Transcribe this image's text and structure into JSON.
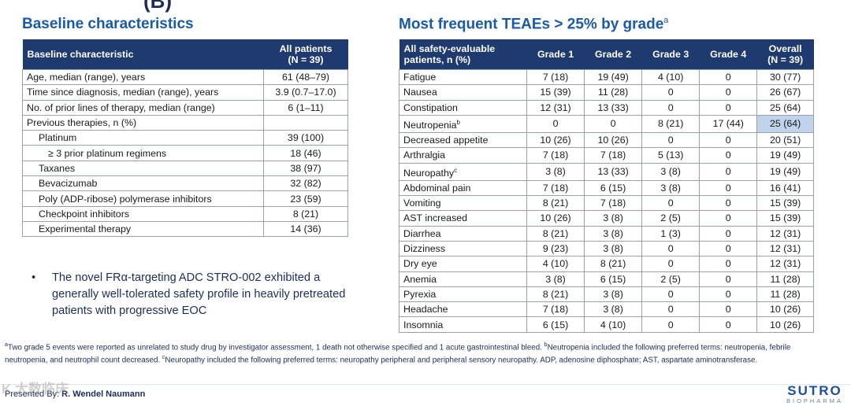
{
  "baseline": {
    "title": "Baseline characteristics",
    "header_col1": "Baseline characteristic",
    "header_col2_line1": "All patients",
    "header_col2_line2": "(N = 39)",
    "rows": [
      {
        "label": "Age, median (range), years",
        "value": "61 (48–79)"
      },
      {
        "label": "Time since diagnosis, median (range), years",
        "value": "3.9 (0.7–17.0)"
      },
      {
        "label": "No. of prior lines of therapy, median (range)",
        "value": "6 (1–11)"
      },
      {
        "label": "Previous therapies, n (%)",
        "value": ""
      },
      {
        "label": "Platinum",
        "value": "39 (100)"
      },
      {
        "label": "≥ 3 prior platinum regimens",
        "value": "18 (46)"
      },
      {
        "label": "Taxanes",
        "value": "38 (97)"
      },
      {
        "label": "Bevacizumab",
        "value": "32 (82)"
      },
      {
        "label": "Poly (ADP-ribose) polymerase inhibitors",
        "value": "23 (59)"
      },
      {
        "label": "Checkpoint inhibitors",
        "value": "8 (21)"
      },
      {
        "label": "Experimental therapy",
        "value": "14 (36)"
      }
    ]
  },
  "teae": {
    "title": "Most frequent TEAEs > 25% by grade",
    "title_sup": "a",
    "header_col1_line1": "All safety-evaluable",
    "header_col1_line2": "patients, n (%)",
    "headers": [
      "Grade 1",
      "Grade 2",
      "Grade 3",
      "Grade 4"
    ],
    "header_overall_line1": "Overall",
    "header_overall_line2": "(N = 39)",
    "rows": [
      {
        "name": "Fatigue",
        "sup": "",
        "g1": "7 (18)",
        "g2": "19 (49)",
        "g3": "4 (10)",
        "g4": "0",
        "overall": "30 (77)"
      },
      {
        "name": "Nausea",
        "sup": "",
        "g1": "15 (39)",
        "g2": "11 (28)",
        "g3": "0",
        "g4": "0",
        "overall": "26 (67)"
      },
      {
        "name": "Constipation",
        "sup": "",
        "g1": "12 (31)",
        "g2": "13 (33)",
        "g3": "0",
        "g4": "0",
        "overall": "25 (64)"
      },
      {
        "name": "Neutropenia",
        "sup": "b",
        "g1": "0",
        "g2": "0",
        "g3": "8 (21)",
        "g4": "17 (44)",
        "overall": "25 (64)"
      },
      {
        "name": "Decreased appetite",
        "sup": "",
        "g1": "10 (26)",
        "g2": "10 (26)",
        "g3": "0",
        "g4": "0",
        "overall": "20 (51)"
      },
      {
        "name": "Arthralgia",
        "sup": "",
        "g1": "7 (18)",
        "g2": "7 (18)",
        "g3": "5 (13)",
        "g4": "0",
        "overall": "19 (49)"
      },
      {
        "name": "Neuropathy",
        "sup": "c",
        "g1": "3 (8)",
        "g2": "13 (33)",
        "g3": "3 (8)",
        "g4": "0",
        "overall": "19 (49)"
      },
      {
        "name": "Abdominal pain",
        "sup": "",
        "g1": "7 (18)",
        "g2": "6 (15)",
        "g3": "3 (8)",
        "g4": "0",
        "overall": "16 (41)"
      },
      {
        "name": "Vomiting",
        "sup": "",
        "g1": "8 (21)",
        "g2": "7 (18)",
        "g3": "0",
        "g4": "0",
        "overall": "15 (39)"
      },
      {
        "name": "AST increased",
        "sup": "",
        "g1": "10 (26)",
        "g2": "3 (8)",
        "g3": "2 (5)",
        "g4": "0",
        "overall": "15 (39)"
      },
      {
        "name": "Diarrhea",
        "sup": "",
        "g1": "8 (21)",
        "g2": "3 (8)",
        "g3": "1 (3)",
        "g4": "0",
        "overall": "12 (31)"
      },
      {
        "name": "Dizziness",
        "sup": "",
        "g1": "9 (23)",
        "g2": "3 (8)",
        "g3": "0",
        "g4": "0",
        "overall": "12 (31)"
      },
      {
        "name": "Dry eye",
        "sup": "",
        "g1": "4 (10)",
        "g2": "8 (21)",
        "g3": "0",
        "g4": "0",
        "overall": "12 (31)"
      },
      {
        "name": "Anemia",
        "sup": "",
        "g1": "3 (8)",
        "g2": "6 (15)",
        "g3": "2 (5)",
        "g4": "0",
        "overall": "11 (28)"
      },
      {
        "name": "Pyrexia",
        "sup": "",
        "g1": "8 (21)",
        "g2": "3 (8)",
        "g3": "0",
        "g4": "0",
        "overall": "11 (28)"
      },
      {
        "name": "Headache",
        "sup": "",
        "g1": "7 (18)",
        "g2": "3 (8)",
        "g3": "0",
        "g4": "0",
        "overall": "10 (26)"
      },
      {
        "name": "Insomnia",
        "sup": "",
        "g1": "6 (15)",
        "g2": "4 (10)",
        "g3": "0",
        "g4": "0",
        "overall": "10 (26)"
      }
    ]
  },
  "bullet": {
    "marker": "•",
    "text": "The novel FRα-targeting ADC STRO-002 exhibited a generally well-tolerated safety profile in heavily pretreated patients with progressive EOC"
  },
  "footnote": {
    "sup_a": "a",
    "text_a": "Two grade 5 events were reported as unrelated to study drug by investigator assessment, 1 death not otherwise specified and 1 acute gastrointestinal bleed.",
    "sup_b": "b",
    "text_b": "Neutropenia included the following preferred terms: neutropenia, febrile neutropenia, and neutrophil count decreased.",
    "sup_c": "c",
    "text_c": "Neuropathy included the following preferred terms: neuropathy peripheral and peripheral sensory neuropathy.",
    "abbrev": "ADP, adenosine diphosphate; AST, aspartate aminotransferase."
  },
  "presenter": {
    "label": "Presented By:",
    "name": "R. Wendel Naumann"
  },
  "watermark": "K 大数临床",
  "logo": {
    "line1": "SUTRO",
    "line2": "BIOPHARMA"
  },
  "top_fragment": "(B)",
  "highlight_color": "#bfd4ec",
  "header_color": "#1f3a6e",
  "title_color": "#1a5aa6"
}
